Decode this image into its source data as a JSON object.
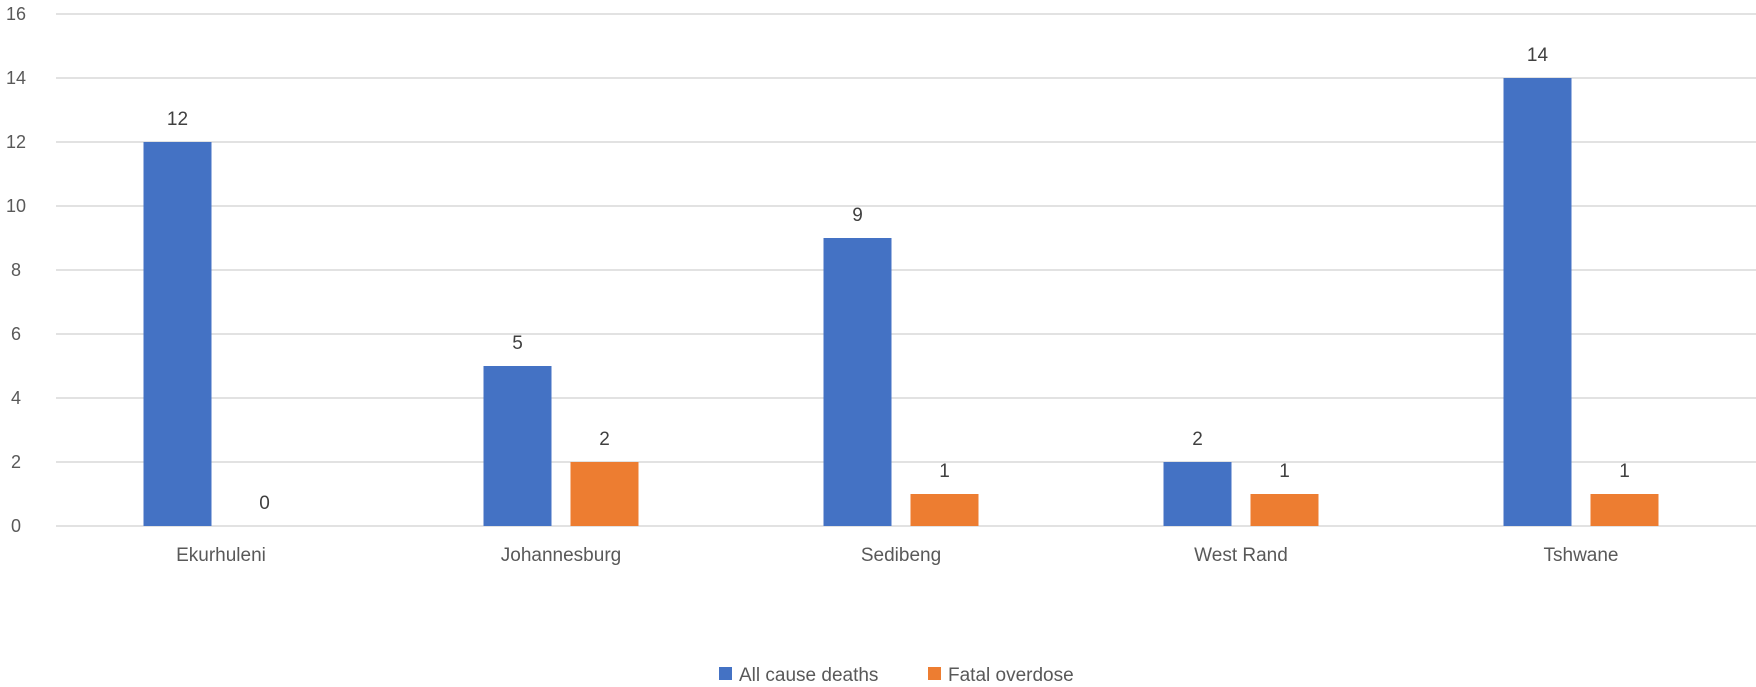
{
  "chart_data": {
    "type": "bar",
    "categories": [
      "Ekurhuleni",
      "Johannesburg",
      "Sedibeng",
      "West Rand",
      "Tshwane"
    ],
    "series": [
      {
        "name": "All cause deaths",
        "values": [
          12,
          5,
          9,
          2,
          14
        ],
        "color": "#4472C4"
      },
      {
        "name": "Fatal overdose",
        "values": [
          0,
          2,
          1,
          1,
          1
        ],
        "color": "#ED7D31"
      }
    ],
    "ylim": [
      0,
      16
    ],
    "yticks": [
      0,
      2,
      4,
      6,
      8,
      10,
      12,
      14,
      16
    ],
    "grid": true,
    "legend": "bottom-center",
    "data_labels": true
  }
}
